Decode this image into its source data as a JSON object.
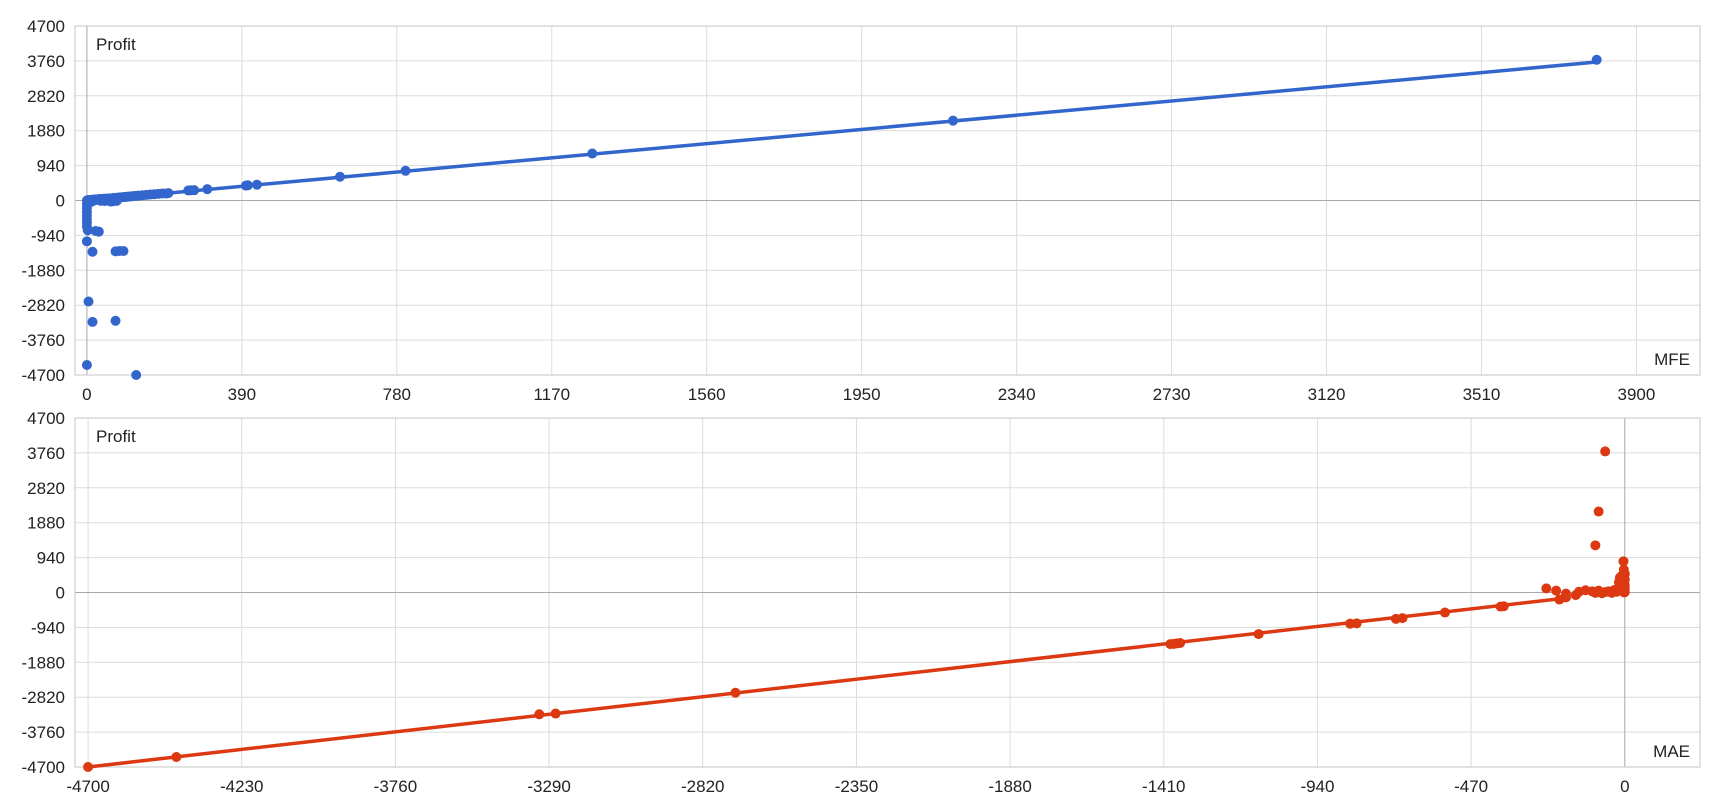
{
  "colors": {
    "mfe": "#3366cc",
    "mae": "#dc3912",
    "grid": "#dcdcdc",
    "axis": "#a8a8a8"
  },
  "chart_data": [
    {
      "type": "scatter",
      "ylabel": "Profit",
      "xlabel": "MFE",
      "ylim": [
        -4700,
        4700
      ],
      "xlim": [
        -30,
        4060
      ],
      "yticks": [
        4700,
        3760,
        2820,
        1880,
        940,
        0,
        -940,
        -1880,
        -2820,
        -3760,
        -4700
      ],
      "xticks": [
        0,
        390,
        780,
        1170,
        1560,
        1950,
        2340,
        2730,
        3120,
        3510,
        3900
      ],
      "grid": true,
      "trendline": {
        "x1": 0,
        "y1": 0,
        "x2": 3790,
        "y2": 3720
      },
      "points": [
        [
          0,
          0
        ],
        [
          2,
          10
        ],
        [
          4,
          -20
        ],
        [
          6,
          15
        ],
        [
          8,
          5
        ],
        [
          10,
          -40
        ],
        [
          12,
          20
        ],
        [
          14,
          10
        ],
        [
          16,
          -10
        ],
        [
          18,
          25
        ],
        [
          20,
          30
        ],
        [
          22,
          15
        ],
        [
          25,
          20
        ],
        [
          28,
          35
        ],
        [
          30,
          40
        ],
        [
          33,
          25
        ],
        [
          36,
          45
        ],
        [
          40,
          40
        ],
        [
          44,
          50
        ],
        [
          48,
          45
        ],
        [
          52,
          55
        ],
        [
          56,
          50
        ],
        [
          60,
          60
        ],
        [
          64,
          55
        ],
        [
          68,
          70
        ],
        [
          72,
          65
        ],
        [
          76,
          75
        ],
        [
          80,
          80
        ],
        [
          85,
          85
        ],
        [
          90,
          90
        ],
        [
          95,
          95
        ],
        [
          100,
          100
        ],
        [
          105,
          105
        ],
        [
          110,
          110
        ],
        [
          115,
          115
        ],
        [
          120,
          120
        ],
        [
          125,
          125
        ],
        [
          130,
          130
        ],
        [
          140,
          140
        ],
        [
          150,
          150
        ],
        [
          160,
          160
        ],
        [
          170,
          170
        ],
        [
          180,
          180
        ],
        [
          190,
          190
        ],
        [
          200,
          190
        ],
        [
          205,
          200
        ],
        [
          255,
          270
        ],
        [
          262,
          275
        ],
        [
          270,
          278
        ],
        [
          303,
          305
        ],
        [
          400,
          400
        ],
        [
          405,
          410
        ],
        [
          428,
          425
        ],
        [
          637,
          640
        ],
        [
          802,
          800
        ],
        [
          1272,
          1265
        ],
        [
          2180,
          2150
        ],
        [
          3800,
          3790
        ],
        [
          60,
          -30
        ],
        [
          65,
          -20
        ],
        [
          75,
          -10
        ],
        [
          45,
          -15
        ],
        [
          35,
          -10
        ],
        [
          0,
          -100
        ],
        [
          0,
          -200
        ],
        [
          0,
          -300
        ],
        [
          0,
          -400
        ],
        [
          0,
          -500
        ],
        [
          0,
          -600
        ],
        [
          0,
          -700
        ],
        [
          2,
          -800
        ],
        [
          0,
          -1100
        ],
        [
          14,
          -1380
        ],
        [
          4,
          -2720
        ],
        [
          14,
          -3270
        ],
        [
          0,
          -4430
        ],
        [
          30,
          -840
        ],
        [
          22,
          -820
        ],
        [
          72,
          -1370
        ],
        [
          82,
          -1360
        ],
        [
          92,
          -1360
        ],
        [
          72,
          -3240
        ],
        [
          124,
          -4700
        ]
      ]
    },
    {
      "type": "scatter",
      "ylabel": "Profit",
      "xlabel": "MAE",
      "ylim": [
        -4700,
        4700
      ],
      "xlim": [
        -4740,
        230
      ],
      "yticks": [
        4700,
        3760,
        2820,
        1880,
        940,
        0,
        -940,
        -1880,
        -2820,
        -3760,
        -4700
      ],
      "xticks": [
        -4700,
        -4230,
        -3760,
        -3290,
        -2820,
        -2350,
        -1880,
        -1410,
        -940,
        -470,
        0
      ],
      "grid": true,
      "trendline": {
        "x1": -4700,
        "y1": -4700,
        "x2": -170,
        "y2": -140
      },
      "points": [
        [
          -4700,
          -4700
        ],
        [
          -4430,
          -4430
        ],
        [
          -3320,
          -3280
        ],
        [
          -3270,
          -3260
        ],
        [
          -2720,
          -2700
        ],
        [
          -1390,
          -1390
        ],
        [
          -1380,
          -1385
        ],
        [
          -1370,
          -1370
        ],
        [
          -1360,
          -1360
        ],
        [
          -1120,
          -1120
        ],
        [
          -840,
          -840
        ],
        [
          -820,
          -830
        ],
        [
          -700,
          -710
        ],
        [
          -680,
          -690
        ],
        [
          -550,
          -540
        ],
        [
          -380,
          -380
        ],
        [
          -370,
          -370
        ],
        [
          -240,
          110
        ],
        [
          -210,
          50
        ],
        [
          -200,
          -190
        ],
        [
          -180,
          -130
        ],
        [
          -180,
          -30
        ],
        [
          -150,
          -70
        ],
        [
          -140,
          20
        ],
        [
          -120,
          60
        ],
        [
          -100,
          30
        ],
        [
          -90,
          -10
        ],
        [
          -80,
          50
        ],
        [
          -70,
          -20
        ],
        [
          -60,
          10
        ],
        [
          -50,
          30
        ],
        [
          -40,
          -10
        ],
        [
          -35,
          50
        ],
        [
          -30,
          70
        ],
        [
          -25,
          20
        ],
        [
          -20,
          120
        ],
        [
          -18,
          280
        ],
        [
          -15,
          400
        ],
        [
          -10,
          440
        ],
        [
          -8,
          40
        ],
        [
          -5,
          150
        ],
        [
          -4,
          840
        ],
        [
          -3,
          620
        ],
        [
          -2,
          0
        ],
        [
          -1,
          60
        ],
        [
          0,
          10
        ],
        [
          0,
          100
        ],
        [
          0,
          200
        ],
        [
          0,
          350
        ],
        [
          0,
          500
        ],
        [
          -90,
          1270
        ],
        [
          -80,
          2180
        ],
        [
          -60,
          3800
        ]
      ]
    }
  ]
}
